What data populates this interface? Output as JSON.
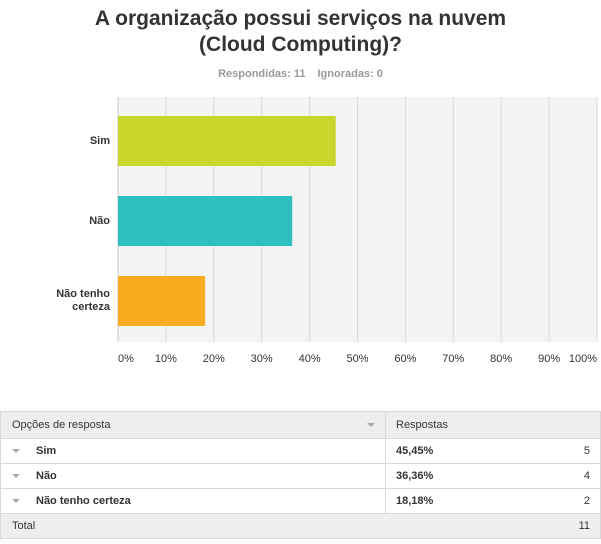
{
  "header": {
    "title_line1": "A organização possui serviços na nuvem",
    "title_line2": "(Cloud Computing)?",
    "answered_label": "Respondidas: 11",
    "skipped_label": "Ignoradas: 0"
  },
  "chart_data": {
    "type": "bar",
    "orientation": "horizontal",
    "categories": [
      "Sim",
      "Não",
      "Não tenho certeza"
    ],
    "category_display": [
      "Sim",
      "Não",
      "Não tenho\ncerteza"
    ],
    "values": [
      45.45,
      36.36,
      18.18
    ],
    "colors": [
      "#c9d62b",
      "#2ebfbf",
      "#f9ac1d"
    ],
    "xlim": [
      0,
      100
    ],
    "xticks": [
      "0%",
      "10%",
      "20%",
      "30%",
      "40%",
      "50%",
      "60%",
      "70%",
      "80%",
      "90%",
      "100%"
    ],
    "grid": true,
    "title": "A organização possui serviços na nuvem (Cloud Computing)?"
  },
  "table": {
    "header_option": "Opções de resposta",
    "header_responses": "Respostas",
    "rows": [
      {
        "option": "Sim",
        "percent": "45,45%",
        "count": "5"
      },
      {
        "option": "Não",
        "percent": "36,36%",
        "count": "4"
      },
      {
        "option": "Não tenho certeza",
        "percent": "18,18%",
        "count": "2"
      }
    ],
    "total_label": "Total",
    "total_count": "11"
  }
}
